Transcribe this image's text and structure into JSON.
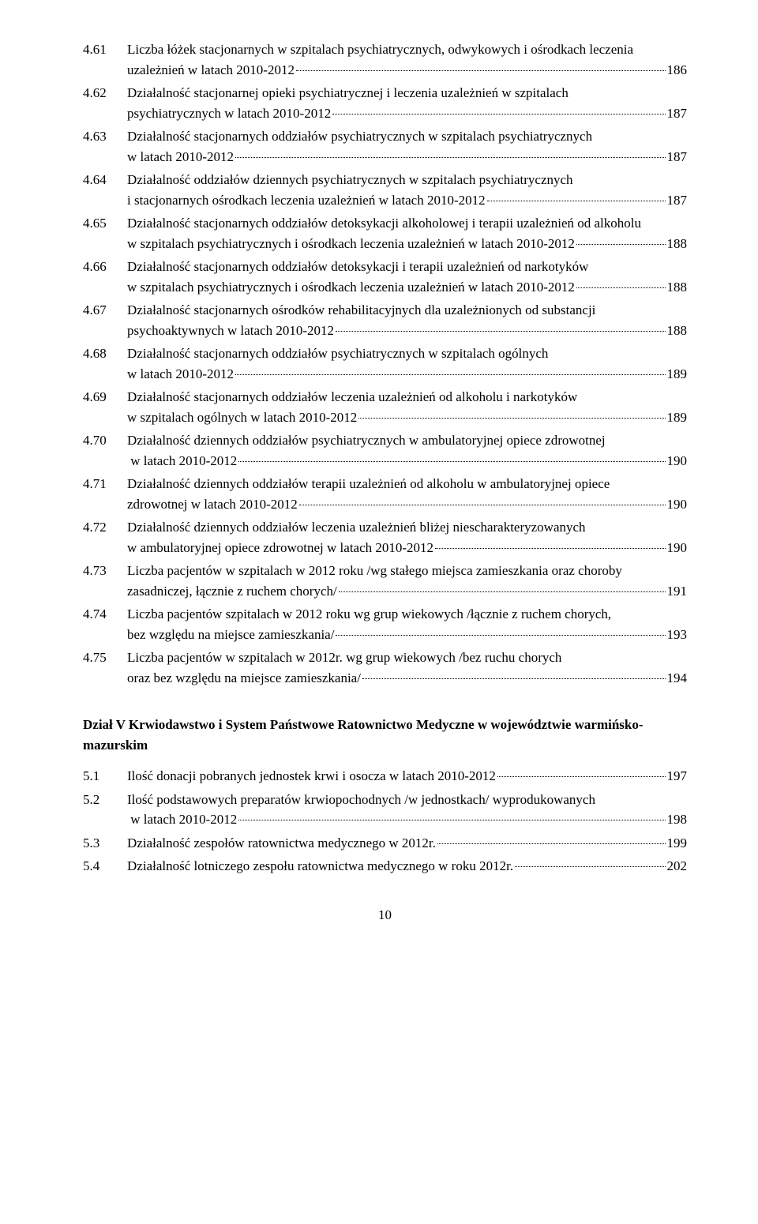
{
  "entries": [
    {
      "num": "4.61",
      "lines": [
        "Liczba łóżek stacjonarnych w szpitalach psychiatrycznych, odwykowych i ośrodkach leczenia"
      ],
      "last": "uzależnień w latach 2010-2012",
      "page": "186"
    },
    {
      "num": "4.62",
      "lines": [
        "Działalność stacjonarnej opieki psychiatrycznej i leczenia uzależnień w szpitalach"
      ],
      "last": "psychiatrycznych w latach 2010-2012",
      "page": "187"
    },
    {
      "num": "4.63",
      "lines": [
        "Działalność stacjonarnych oddziałów psychiatrycznych w szpitalach psychiatrycznych"
      ],
      "last": "w latach 2010-2012",
      "page": "187"
    },
    {
      "num": "4.64",
      "lines": [
        "Działalność oddziałów dziennych psychiatrycznych w szpitalach psychiatrycznych"
      ],
      "last": "i stacjonarnych ośrodkach leczenia uzależnień w latach 2010-2012",
      "page": "187"
    },
    {
      "num": "4.65",
      "lines": [
        "Działalność stacjonarnych oddziałów detoksykacji alkoholowej i terapii uzależnień od alkoholu"
      ],
      "last": "w szpitalach psychiatrycznych i ośrodkach leczenia uzależnień w latach 2010-2012",
      "page": "188"
    },
    {
      "num": "4.66",
      "lines": [
        "Działalność stacjonarnych oddziałów detoksykacji i terapii uzależnień od narkotyków"
      ],
      "last": "w szpitalach psychiatrycznych i ośrodkach leczenia uzależnień w latach 2010-2012",
      "page": "188"
    },
    {
      "num": "4.67",
      "lines": [
        "Działalność stacjonarnych ośrodków rehabilitacyjnych dla uzależnionych od substancji"
      ],
      "last": "psychoaktywnych w latach 2010-2012",
      "page": "188"
    },
    {
      "num": "4.68",
      "lines": [
        "Działalność stacjonarnych oddziałów psychiatrycznych w szpitalach ogólnych"
      ],
      "last": "w latach 2010-2012",
      "page": "189"
    },
    {
      "num": "4.69",
      "lines": [
        "Działalność stacjonarnych oddziałów leczenia uzależnień od alkoholu i narkotyków"
      ],
      "last": "w szpitalach ogólnych w latach 2010-2012",
      "page": "189"
    },
    {
      "num": "4.70",
      "lines": [
        "Działalność dziennych oddziałów psychiatrycznych w ambulatoryjnej opiece zdrowotnej"
      ],
      "last": " w latach 2010-2012",
      "page": "190"
    },
    {
      "num": "4.71",
      "lines": [
        "Działalność dziennych oddziałów terapii uzależnień od alkoholu w ambulatoryjnej opiece"
      ],
      "last": "zdrowotnej w latach 2010-2012",
      "page": "190"
    },
    {
      "num": "4.72",
      "lines": [
        "Działalność dziennych oddziałów leczenia uzależnień bliżej niescharakteryzowanych"
      ],
      "last": "w ambulatoryjnej opiece zdrowotnej w latach 2010-2012",
      "page": "190"
    },
    {
      "num": "4.73",
      "lines": [
        "Liczba pacjentów w szpitalach w 2012 roku /wg stałego miejsca zamieszkania oraz choroby"
      ],
      "last": "zasadniczej, łącznie z ruchem chorych/",
      "page": "191"
    },
    {
      "num": "4.74",
      "lines": [
        "Liczba pacjentów szpitalach w 2012 roku wg grup wiekowych /łącznie z ruchem chorych,"
      ],
      "last": "bez względu na miejsce zamieszkania/",
      "page": "193"
    },
    {
      "num": "4.75",
      "lines": [
        "Liczba pacjentów w szpitalach w 2012r. wg grup wiekowych /bez ruchu chorych"
      ],
      "last": "oraz bez względu na miejsce zamieszkania/",
      "page": "194"
    }
  ],
  "sectionTitle": "Dział V  Krwiodawstwo i System Państwowe Ratownictwo Medyczne w województwie warmińsko-mazurskim",
  "entries2": [
    {
      "num": "5.1",
      "lines": [],
      "last": "Ilość donacji pobranych jednostek krwi i osocza w latach 2010-2012",
      "page": "197"
    },
    {
      "num": "5.2",
      "lines": [
        "Ilość podstawowych preparatów krwiopochodnych /w jednostkach/ wyprodukowanych"
      ],
      "last": " w latach 2010-2012",
      "page": "198"
    },
    {
      "num": "5.3",
      "lines": [],
      "last": "Działalność zespołów ratownictwa medycznego w 2012r.",
      "page": "199"
    },
    {
      "num": "5.4",
      "lines": [],
      "last": "Działalność lotniczego zespołu ratownictwa medycznego w roku 2012r.",
      "page": "202"
    }
  ],
  "pageNumber": "10"
}
